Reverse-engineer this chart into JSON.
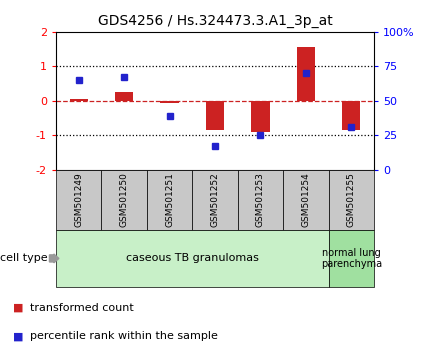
{
  "title": "GDS4256 / Hs.324473.3.A1_3p_at",
  "samples": [
    "GSM501249",
    "GSM501250",
    "GSM501251",
    "GSM501252",
    "GSM501253",
    "GSM501254",
    "GSM501255"
  ],
  "red_bars": [
    0.05,
    0.25,
    -0.05,
    -0.85,
    -0.9,
    1.55,
    -0.85
  ],
  "blue_dots": [
    0.6,
    0.7,
    -0.45,
    -1.3,
    -1.0,
    0.8,
    -0.75
  ],
  "ylim_left": [
    -2,
    2
  ],
  "ylim_right": [
    0,
    100
  ],
  "yticks_left": [
    -2,
    -1,
    0,
    1,
    2
  ],
  "yticks_right": [
    0,
    25,
    50,
    75,
    100
  ],
  "ytick_labels_right": [
    "0",
    "25",
    "50",
    "75",
    "100%"
  ],
  "group1_indices": [
    0,
    1,
    2,
    3,
    4,
    5
  ],
  "group2_indices": [
    6
  ],
  "group1_label": "caseous TB granulomas",
  "group2_label": "normal lung\nparenchyma",
  "cell_type_label": "cell type",
  "legend_red": "transformed count",
  "legend_blue": "percentile rank within the sample",
  "bar_color": "#cc2222",
  "dot_color": "#2222cc",
  "group1_color": "#c8f0c8",
  "group2_color": "#a0e0a0",
  "header_color": "#c8c8c8",
  "zero_line_color": "#cc2222",
  "bg_color": "#ffffff",
  "title_fontsize": 10
}
